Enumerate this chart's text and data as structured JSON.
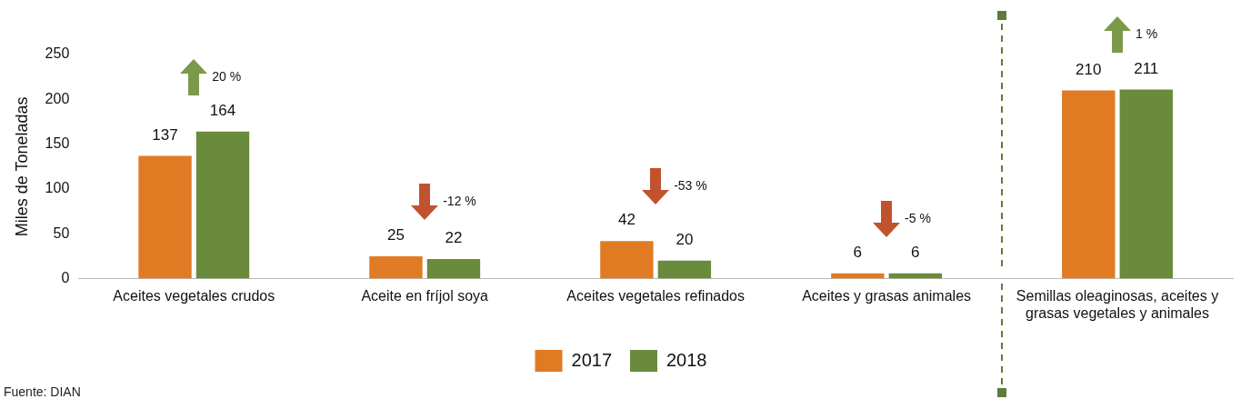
{
  "chart_data": {
    "type": "bar",
    "ylabel": "Miles de Toneladas",
    "categories": [
      "Aceites vegetales crudos",
      "Aceite en fríjol soya",
      "Aceites vegetales refinados",
      "Aceites y grasas animales",
      "Semillas oleaginosas, aceites y grasas vegetales y animales"
    ],
    "series": [
      {
        "name": "2017",
        "color": "#e07b24",
        "values": [
          137,
          25,
          42,
          6,
          210
        ]
      },
      {
        "name": "2018",
        "color": "#6a8a3c",
        "values": [
          164,
          22,
          20,
          6,
          211
        ]
      }
    ],
    "ylim": [
      0,
      250
    ],
    "yticks": [
      0,
      50,
      100,
      150,
      200,
      250
    ],
    "grid": false,
    "legend": "bottom",
    "data_labels": true,
    "annotations": [
      "20 %",
      "-12 %",
      "-53 %",
      "-5 %",
      "1 %",
      "Fuente: DIAN"
    ]
  }
}
